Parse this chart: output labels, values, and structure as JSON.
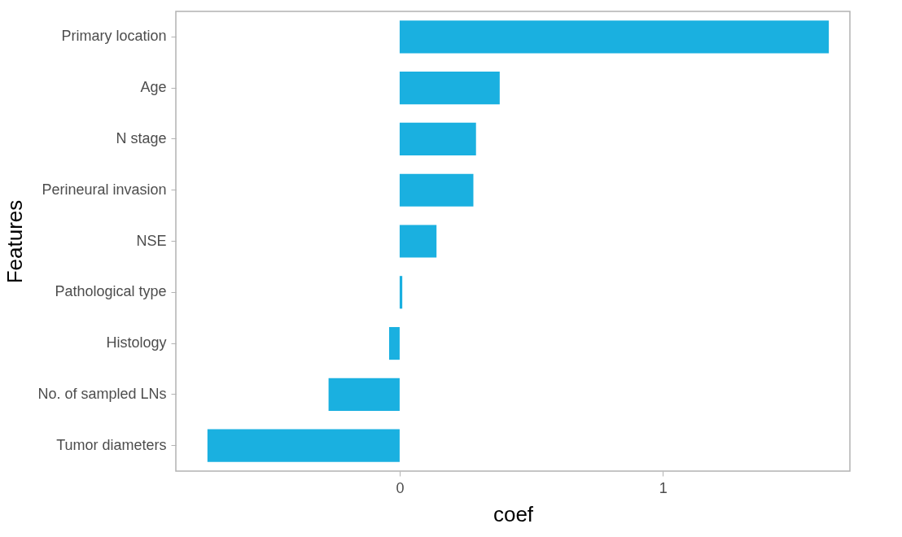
{
  "chart_data": {
    "type": "bar",
    "orientation": "horizontal",
    "xlabel": "coef",
    "ylabel": "Features",
    "categories": [
      "Primary location",
      "Age",
      "N stage",
      "Perineural invasion",
      "NSE",
      "Pathological type",
      "Histology",
      "No. of sampled LNs",
      "Tumor diameters"
    ],
    "values": [
      1.63,
      0.38,
      0.29,
      0.28,
      0.14,
      0.01,
      -0.04,
      -0.27,
      -0.73
    ],
    "color": "#1ab0e0",
    "xlim": [
      -0.85,
      1.71
    ],
    "xticks": [
      0,
      1
    ]
  }
}
